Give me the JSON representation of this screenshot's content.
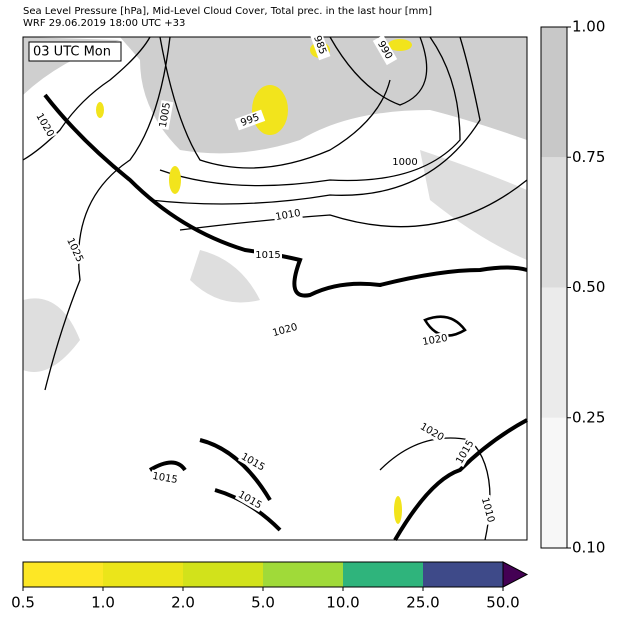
{
  "header": {
    "title_line1": "Sea Level Pressure [hPa], Mid-Level Cloud Cover, Total prec. in the last hour [mm]",
    "title_line2": "WRF 29.06.2019 18:00 UTC +33"
  },
  "map": {
    "time_label": "03 UTC Mon",
    "contour_labels": [
      "1020",
      "1025",
      "1005",
      "995",
      "985",
      "990",
      "1000",
      "1010",
      "1015",
      "1020",
      "1020",
      "1015",
      "1015",
      "1015",
      "1020",
      "1015",
      "1010"
    ]
  },
  "cloud_colorbar": {
    "ticks": [
      "0.10",
      "0.25",
      "0.50",
      "0.75",
      "1.00"
    ],
    "colors": [
      "#f7f7f7",
      "#ebebeb",
      "#dcdcdc",
      "#c8c8c8"
    ]
  },
  "precip_colorbar": {
    "ticks": [
      "0.5",
      "1.0",
      "2.0",
      "5.0",
      "10.0",
      "25.0",
      "50.0"
    ],
    "colors": [
      "#fde725",
      "#ebe51a",
      "#d2e21b",
      "#a0da39",
      "#2fb47c",
      "#3e4a89"
    ],
    "over_color": "#440154"
  }
}
